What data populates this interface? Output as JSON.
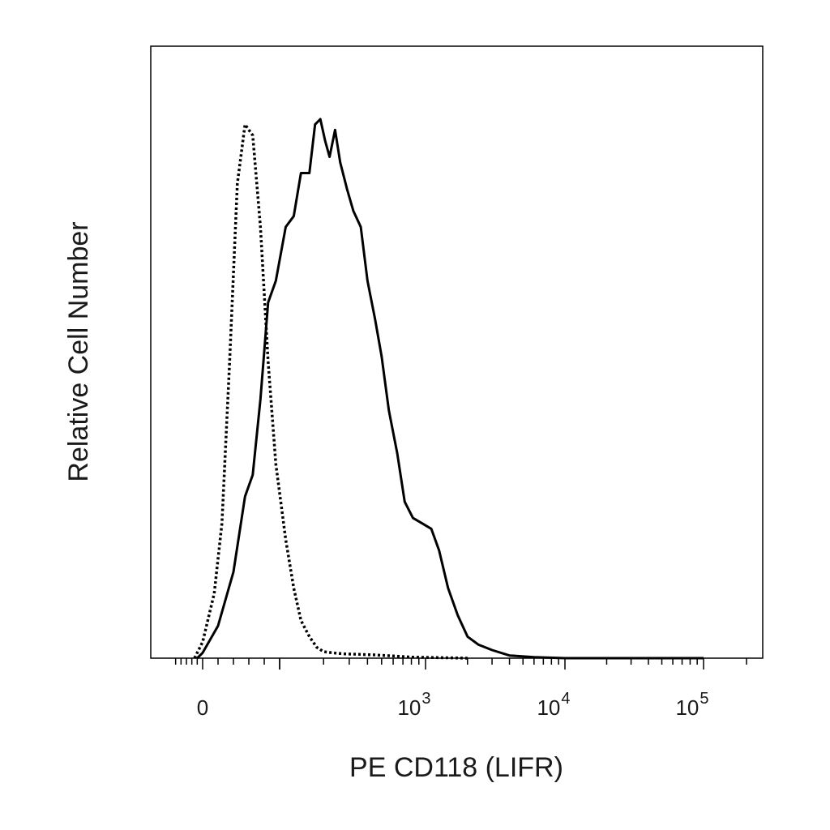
{
  "chart_data": {
    "type": "line",
    "title": "",
    "xlabel": "PE CD118 (LIFR)",
    "ylabel": "Relative Cell Number",
    "x_scale": "biexponential (logicle)",
    "x_ticklabels": [
      {
        "base": "0",
        "exp": "",
        "value": 0
      },
      {
        "base": "10",
        "exp": "3",
        "value": 1000
      },
      {
        "base": "10",
        "exp": "4",
        "value": 10000
      },
      {
        "base": "10",
        "exp": "5",
        "value": 100000
      }
    ],
    "xlim": [
      -150,
      200000
    ],
    "ylim": [
      0,
      1.1
    ],
    "y_ticks": "none",
    "grid": false,
    "legend": "none",
    "series": [
      {
        "style": "dotted",
        "color": "#000000",
        "x": [
          -30,
          0,
          15,
          25,
          35,
          45,
          55,
          65,
          75,
          85,
          95,
          110,
          125,
          140,
          160,
          180,
          200,
          230,
          280,
          350,
          450,
          600,
          800,
          1200,
          2000
        ],
        "y": [
          0.0,
          0.03,
          0.12,
          0.25,
          0.55,
          0.88,
          0.99,
          0.97,
          0.8,
          0.55,
          0.36,
          0.22,
          0.13,
          0.07,
          0.04,
          0.02,
          0.012,
          0.01,
          0.008,
          0.007,
          0.006,
          0.004,
          0.002,
          0.001,
          0.0
        ]
      },
      {
        "style": "solid",
        "color": "#000000",
        "x": [
          -20,
          0,
          20,
          40,
          55,
          65,
          75,
          85,
          95,
          110,
          125,
          140,
          160,
          175,
          190,
          205,
          220,
          240,
          260,
          290,
          320,
          360,
          400,
          450,
          500,
          560,
          640,
          720,
          820,
          950,
          1100,
          1250,
          1450,
          1700,
          2000,
          2400,
          3000,
          4000,
          6000,
          10000,
          100000
        ],
        "y": [
          0.0,
          0.01,
          0.06,
          0.16,
          0.3,
          0.34,
          0.48,
          0.66,
          0.7,
          0.8,
          0.82,
          0.9,
          0.9,
          0.99,
          1.0,
          0.96,
          0.93,
          0.98,
          0.92,
          0.87,
          0.83,
          0.8,
          0.7,
          0.63,
          0.56,
          0.46,
          0.38,
          0.29,
          0.26,
          0.25,
          0.24,
          0.2,
          0.13,
          0.08,
          0.04,
          0.025,
          0.015,
          0.005,
          0.002,
          0.0,
          0.0
        ]
      }
    ]
  }
}
